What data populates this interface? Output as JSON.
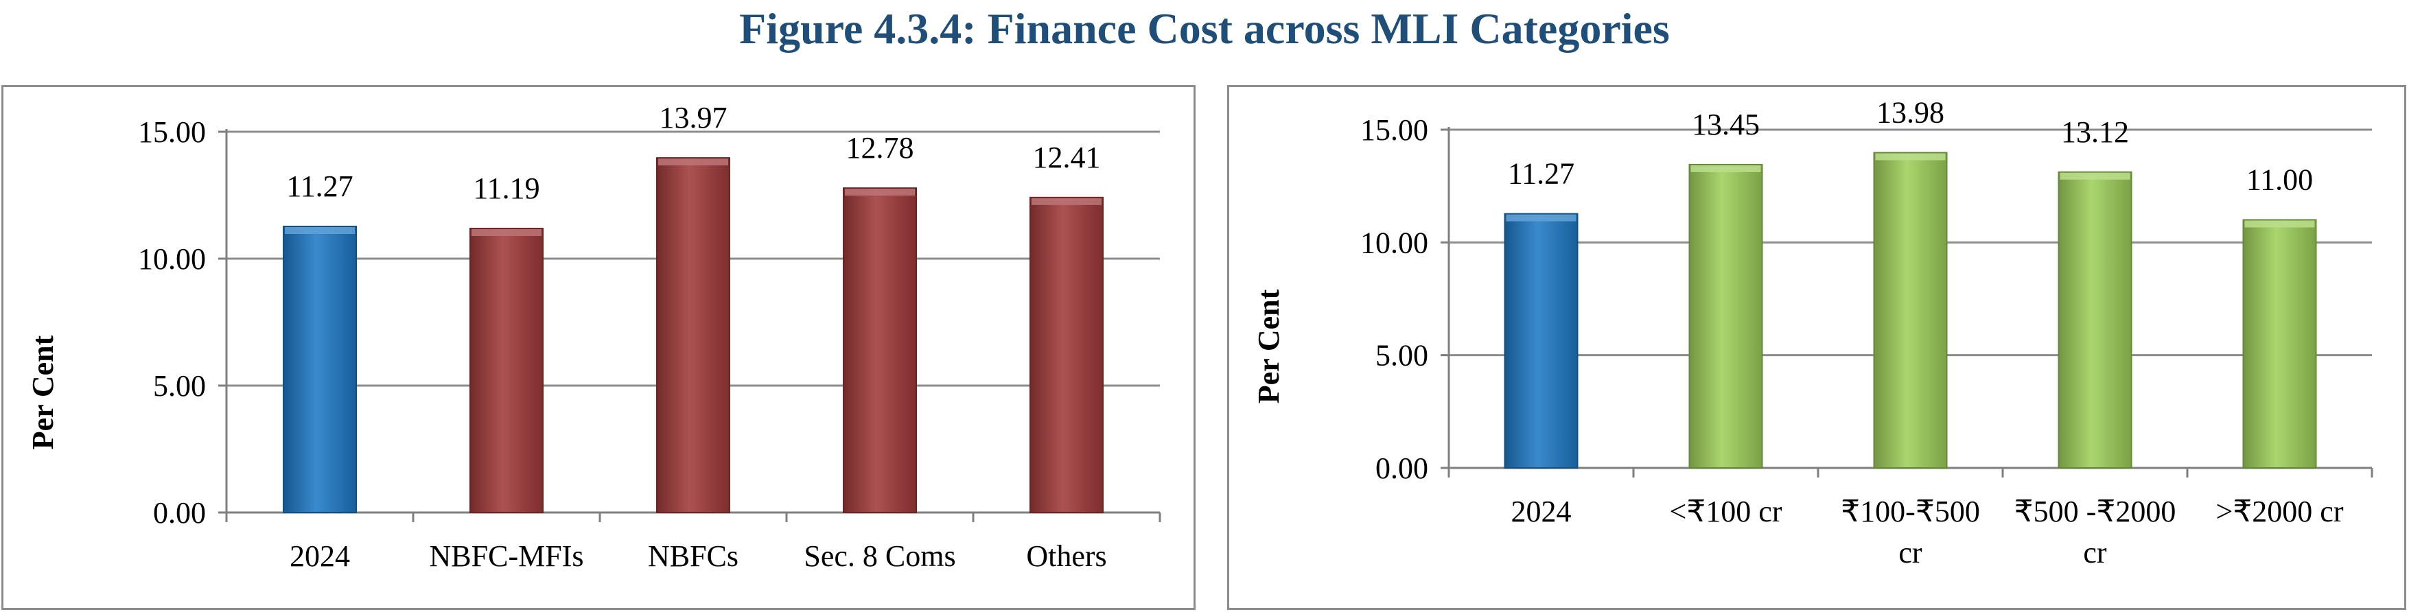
{
  "title": "Figure 4.3.4: Finance Cost across MLI Categories",
  "colors": {
    "title": "#1F4E79",
    "blue": "#1f7ac7",
    "red": "#a13a3a",
    "green": "#9ed05a",
    "grid": "#8c8c8c",
    "axis": "#7f7f7f"
  },
  "chart_data": [
    {
      "type": "bar",
      "ylabel": "Per Cent",
      "xlabel": "",
      "ylim": [
        0,
        15
      ],
      "yticks": [
        "0.00",
        "5.00",
        "10.00",
        "15.00"
      ],
      "ytick_values": [
        0,
        5,
        10,
        15
      ],
      "grid": true,
      "legend": "none",
      "categories": [
        [
          "2024"
        ],
        [
          "NBFC-MFIs"
        ],
        [
          "NBFCs"
        ],
        [
          "Sec. 8 Coms"
        ],
        [
          "Others"
        ]
      ],
      "values": [
        11.27,
        11.19,
        13.97,
        12.78,
        12.41
      ],
      "value_labels": [
        "11.27",
        "11.19",
        "13.97",
        "12.78",
        "12.41"
      ],
      "bar_colors": [
        "blue",
        "red",
        "red",
        "red",
        "red"
      ]
    },
    {
      "type": "bar",
      "ylabel": "Per Cent",
      "xlabel": "",
      "ylim": [
        0,
        15
      ],
      "yticks": [
        "0.00",
        "5.00",
        "10.00",
        "15.00"
      ],
      "ytick_values": [
        0,
        5,
        10,
        15
      ],
      "grid": true,
      "legend": "none",
      "categories": [
        [
          "2024"
        ],
        [
          "<₹100 cr"
        ],
        [
          "₹100-₹500",
          "cr"
        ],
        [
          "₹500 -₹2000",
          "cr"
        ],
        [
          ">₹2000 cr"
        ]
      ],
      "values": [
        11.27,
        13.45,
        13.98,
        13.12,
        11.0
      ],
      "value_labels": [
        "11.27",
        "13.45",
        "13.98",
        "13.12",
        "11.00"
      ],
      "bar_colors": [
        "blue",
        "green",
        "green",
        "green",
        "green"
      ]
    }
  ]
}
